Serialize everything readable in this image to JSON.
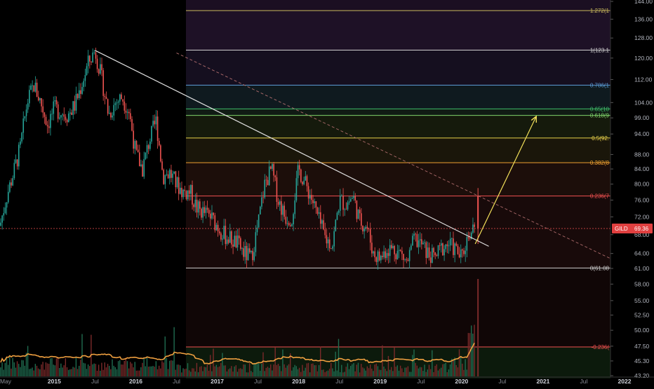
{
  "symbol": "GILD",
  "last_price": "69.36",
  "chart_data": {
    "type": "candlestick",
    "interval": "weekly",
    "symbol": "GILD",
    "y_axis_scale": "log",
    "ylim": [
      43.2,
      144.0
    ],
    "y_ticks": [
      "144.00",
      "136.00",
      "128.00",
      "120.00",
      "112.00",
      "104.00",
      "99.00",
      "94.00",
      "88.00",
      "84.00",
      "80.00",
      "76.00",
      "72.00",
      "68.00",
      "64.00",
      "61.00",
      "58.00",
      "55.00",
      "52.50",
      "50.00",
      "47.50",
      "45.30",
      "43.20"
    ],
    "x_ticks": [
      "May",
      "2015",
      "Jul",
      "2016",
      "Jul",
      "2017",
      "Jul",
      "2018",
      "Jul",
      "2019",
      "Jul",
      "2020",
      "Jul",
      "2021",
      "Jul",
      "2022"
    ],
    "price_series": [
      {
        "date": "2014-05",
        "price": 70
      },
      {
        "date": "2014-06",
        "price": 77
      },
      {
        "date": "2014-07",
        "price": 83
      },
      {
        "date": "2014-08",
        "price": 90
      },
      {
        "date": "2014-09",
        "price": 104
      },
      {
        "date": "2014-10",
        "price": 110
      },
      {
        "date": "2014-11",
        "price": 104
      },
      {
        "date": "2014-12",
        "price": 97
      },
      {
        "date": "2015-01",
        "price": 102
      },
      {
        "date": "2015-03",
        "price": 100
      },
      {
        "date": "2015-04",
        "price": 103
      },
      {
        "date": "2015-05",
        "price": 110
      },
      {
        "date": "2015-06",
        "price": 118
      },
      {
        "date": "2015-07",
        "price": 123
      },
      {
        "date": "2015-08",
        "price": 112
      },
      {
        "date": "2015-09",
        "price": 100
      },
      {
        "date": "2015-10",
        "price": 104
      },
      {
        "date": "2015-11",
        "price": 106
      },
      {
        "date": "2015-12",
        "price": 101
      },
      {
        "date": "2016-01",
        "price": 88
      },
      {
        "date": "2016-02",
        "price": 84
      },
      {
        "date": "2016-03",
        "price": 92
      },
      {
        "date": "2016-04",
        "price": 98
      },
      {
        "date": "2016-05",
        "price": 82
      },
      {
        "date": "2016-06",
        "price": 83
      },
      {
        "date": "2016-07",
        "price": 80
      },
      {
        "date": "2016-08",
        "price": 78
      },
      {
        "date": "2016-09",
        "price": 78
      },
      {
        "date": "2016-10",
        "price": 74
      },
      {
        "date": "2016-11",
        "price": 73
      },
      {
        "date": "2016-12",
        "price": 72
      },
      {
        "date": "2017-01",
        "price": 70
      },
      {
        "date": "2017-02",
        "price": 68
      },
      {
        "date": "2017-03",
        "price": 67
      },
      {
        "date": "2017-04",
        "price": 66
      },
      {
        "date": "2017-05",
        "price": 64
      },
      {
        "date": "2017-06",
        "price": 63
      },
      {
        "date": "2017-07",
        "price": 70
      },
      {
        "date": "2017-08",
        "price": 80
      },
      {
        "date": "2017-09",
        "price": 84
      },
      {
        "date": "2017-10",
        "price": 76
      },
      {
        "date": "2017-11",
        "price": 72
      },
      {
        "date": "2017-12",
        "price": 72
      },
      {
        "date": "2018-01",
        "price": 84
      },
      {
        "date": "2018-02",
        "price": 80
      },
      {
        "date": "2018-03",
        "price": 76
      },
      {
        "date": "2018-04",
        "price": 71
      },
      {
        "date": "2018-05",
        "price": 67
      },
      {
        "date": "2018-06",
        "price": 66
      },
      {
        "date": "2018-07",
        "price": 76
      },
      {
        "date": "2018-08",
        "price": 75
      },
      {
        "date": "2018-09",
        "price": 77
      },
      {
        "date": "2018-10",
        "price": 71
      },
      {
        "date": "2018-11",
        "price": 70
      },
      {
        "date": "2018-12",
        "price": 64
      },
      {
        "date": "2019-01",
        "price": 63
      },
      {
        "date": "2019-02",
        "price": 65
      },
      {
        "date": "2019-03",
        "price": 65
      },
      {
        "date": "2019-04",
        "price": 64
      },
      {
        "date": "2019-05",
        "price": 62
      },
      {
        "date": "2019-06",
        "price": 67
      },
      {
        "date": "2019-07",
        "price": 66
      },
      {
        "date": "2019-08",
        "price": 64
      },
      {
        "date": "2019-09",
        "price": 63
      },
      {
        "date": "2019-10",
        "price": 65
      },
      {
        "date": "2019-11",
        "price": 66
      },
      {
        "date": "2019-12",
        "price": 65
      },
      {
        "date": "2020-01",
        "price": 63
      },
      {
        "date": "2020-02",
        "price": 68
      },
      {
        "date": "2020-03",
        "price": 69.36
      }
    ],
    "fib_levels": [
      {
        "label": "1.272(1",
        "price": 139.8,
        "color": "#c9b95c"
      },
      {
        "label": "1(123.1",
        "price": 123.1,
        "color": "#d0d0d0"
      },
      {
        "label": "0.786(1",
        "price": 110.0,
        "color": "#5b9bd5"
      },
      {
        "label": "0.65(10",
        "price": 101.9,
        "color": "#3fbf6a"
      },
      {
        "label": "0.618(9",
        "price": 99.8,
        "color": "#7fd36a"
      },
      {
        "label": "0.5(92.",
        "price": 92.8,
        "color": "#e8d24a"
      },
      {
        "label": "0.382(8",
        "price": 85.7,
        "color": "#f0a030"
      },
      {
        "label": "0.236(7",
        "price": 77.0,
        "color": "#f05050"
      },
      {
        "label": "0(61.08",
        "price": 61.08,
        "color": "#d0d0d0"
      }
    ],
    "volume_fib_label": "-0.236(",
    "trendlines": [
      {
        "name": "resistance",
        "from": {
          "date": "2015-07",
          "price": 123
        },
        "to": {
          "date": "2020-05",
          "price": 65.5
        },
        "style": "solid",
        "color": "#e0e0e0"
      },
      {
        "name": "projection",
        "from": {
          "date": "2016-07",
          "price": 122
        },
        "to": {
          "date": "2022-02",
          "price": 61
        },
        "style": "dashed",
        "color": "#b57070"
      },
      {
        "name": "target-arrow",
        "from": {
          "date": "2020-03",
          "price": 66
        },
        "to": {
          "date": "2020-12",
          "price": 99.5
        },
        "style": "solid",
        "color": "#f2e05a"
      }
    ],
    "last_price_line": 69.36,
    "volume": {
      "average_line": "orange",
      "spike_date": "2020-03"
    }
  }
}
